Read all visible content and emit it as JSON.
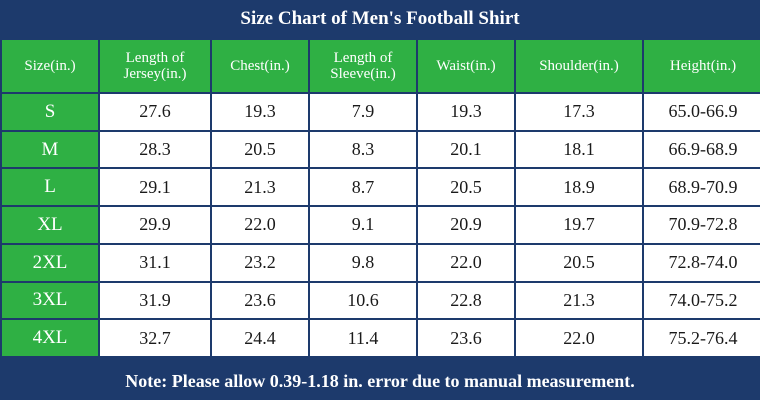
{
  "title": "Size Chart of Men's Football Shirt",
  "headers": [
    "Size(in.)",
    "Length of Jersey(in.)",
    "Chest(in.)",
    "Length of Sleeve(in.)",
    "Waist(in.)",
    "Shoulder(in.)",
    "Height(in.)"
  ],
  "rows": [
    [
      "S",
      "27.6",
      "19.3",
      "7.9",
      "19.3",
      "17.3",
      "65.0-66.9"
    ],
    [
      "M",
      "28.3",
      "20.5",
      "8.3",
      "20.1",
      "18.1",
      "66.9-68.9"
    ],
    [
      "L",
      "29.1",
      "21.3",
      "8.7",
      "20.5",
      "18.9",
      "68.9-70.9"
    ],
    [
      "XL",
      "29.9",
      "22.0",
      "9.1",
      "20.9",
      "19.7",
      "70.9-72.8"
    ],
    [
      "2XL",
      "31.1",
      "23.2",
      "9.8",
      "22.0",
      "20.5",
      "72.8-74.0"
    ],
    [
      "3XL",
      "31.9",
      "23.6",
      "10.6",
      "22.8",
      "21.3",
      "74.0-75.2"
    ],
    [
      "4XL",
      "32.7",
      "24.4",
      "11.4",
      "23.6",
      "22.0",
      "75.2-76.4"
    ]
  ],
  "note": "Note: Please allow 0.39-1.18 in. error due to manual measurement.",
  "colors": {
    "frame": "#1d3a6c",
    "header_green": "#2fb044",
    "cell_white": "#ffffff"
  }
}
